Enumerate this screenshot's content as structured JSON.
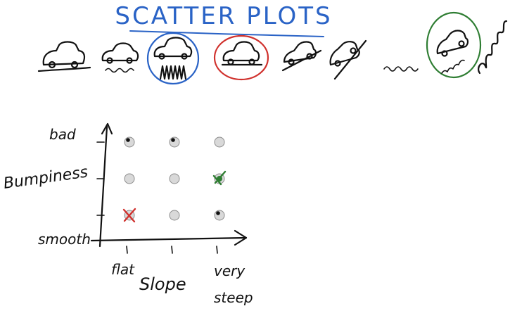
{
  "title": "SCATTER PLOTS",
  "colors": {
    "title": "#2a63c6",
    "blue_circle": "#2a63c6",
    "red_circle": "#d0312d",
    "green_circle": "#2e7d32",
    "ink": "#111111",
    "dot_fill": "#d9d9d9"
  },
  "terrain_icons": [
    {
      "name": "car-flat-smooth-icon",
      "highlight": null
    },
    {
      "name": "car-flat-wavy-icon",
      "highlight": null
    },
    {
      "name": "car-flat-spiky-icon",
      "highlight": "blue"
    },
    {
      "name": "car-flat-road-icon",
      "highlight": "red"
    },
    {
      "name": "car-slope-icon",
      "highlight": null
    },
    {
      "name": "car-steep-slope-icon",
      "highlight": null
    },
    {
      "name": "squiggle-small-icon",
      "highlight": null
    },
    {
      "name": "car-steep-bumpy-icon",
      "highlight": "green"
    },
    {
      "name": "squiggle-loops-icon",
      "highlight": null
    }
  ],
  "chart_data": {
    "type": "scatter",
    "xlabel": "Slope",
    "ylabel": "Bumpiness",
    "x_ticks": [
      "flat",
      "",
      "very steep"
    ],
    "y_ticks": [
      "smooth",
      "",
      "bad"
    ],
    "grid": false,
    "points": [
      {
        "x": 1,
        "y": 3,
        "mark": "dark"
      },
      {
        "x": 2,
        "y": 3,
        "mark": "dark"
      },
      {
        "x": 3,
        "y": 3,
        "mark": "none"
      },
      {
        "x": 1,
        "y": 2,
        "mark": "none"
      },
      {
        "x": 2,
        "y": 2,
        "mark": "none"
      },
      {
        "x": 3,
        "y": 2,
        "mark": "green-check"
      },
      {
        "x": 1,
        "y": 1,
        "mark": "red-x"
      },
      {
        "x": 2,
        "y": 1,
        "mark": "none"
      },
      {
        "x": 3,
        "y": 1,
        "mark": "dark"
      }
    ]
  }
}
